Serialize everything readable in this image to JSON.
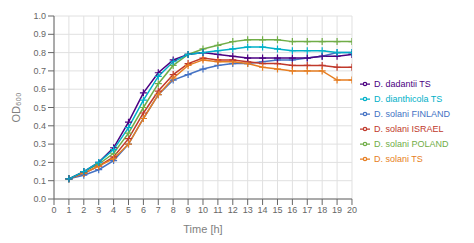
{
  "chart_data": {
    "type": "line",
    "xlabel": "Time [h]",
    "ylabel": "OD₆₀₀",
    "x": [
      1,
      2,
      3,
      4,
      5,
      6,
      7,
      8,
      9,
      10,
      11,
      12,
      13,
      14,
      15,
      16,
      17,
      18,
      19,
      20
    ],
    "xlim": [
      0,
      20
    ],
    "ylim": [
      0.0,
      1.0
    ],
    "xticks": [
      0,
      1,
      2,
      3,
      4,
      5,
      6,
      7,
      8,
      9,
      10,
      11,
      12,
      13,
      14,
      15,
      16,
      17,
      18,
      19,
      20
    ],
    "yticks": [
      {
        "value": 0.0,
        "label": "0.0"
      },
      0.1,
      0.2,
      0.3,
      0.4,
      0.5,
      0.6,
      0.7,
      0.8,
      0.9,
      {
        "value": 1.0,
        "label": "1.0"
      }
    ],
    "grid": true,
    "legend": "right",
    "series": [
      {
        "name": "D. solani FINLAND",
        "color": "#4472C4",
        "marker": "plus",
        "values": [
          0.11,
          0.13,
          0.16,
          0.21,
          0.3,
          0.44,
          0.57,
          0.65,
          0.68,
          0.71,
          0.73,
          0.74,
          0.74,
          0.75,
          0.76,
          0.76,
          0.77,
          0.78,
          0.8,
          0.8
        ]
      },
      {
        "name": "D. solani ISRAEL",
        "color": "#C0392B",
        "marker": "plus",
        "values": [
          0.11,
          0.14,
          0.18,
          0.23,
          0.33,
          0.47,
          0.59,
          0.68,
          0.74,
          0.77,
          0.76,
          0.76,
          0.75,
          0.74,
          0.74,
          0.73,
          0.73,
          0.73,
          0.72,
          0.72
        ]
      },
      {
        "name": "D. solani POLAND",
        "color": "#70AD47",
        "marker": "plus",
        "values": [
          0.11,
          0.15,
          0.19,
          0.25,
          0.36,
          0.5,
          0.63,
          0.73,
          0.79,
          0.82,
          0.84,
          0.86,
          0.87,
          0.87,
          0.87,
          0.86,
          0.86,
          0.86,
          0.86,
          0.86
        ]
      },
      {
        "name": "D. solani TS",
        "color": "#E67E22",
        "marker": "plus",
        "values": [
          0.11,
          0.14,
          0.18,
          0.22,
          0.3,
          0.44,
          0.57,
          0.66,
          0.73,
          0.76,
          0.75,
          0.75,
          0.74,
          0.72,
          0.71,
          0.7,
          0.7,
          0.7,
          0.65,
          0.65
        ]
      },
      {
        "name": "D. dadantii TS",
        "color": "#4B0082",
        "marker": "plus",
        "values": [
          0.11,
          0.15,
          0.2,
          0.28,
          0.42,
          0.58,
          0.69,
          0.76,
          0.79,
          0.8,
          0.79,
          0.78,
          0.77,
          0.77,
          0.77,
          0.77,
          0.77,
          0.78,
          0.78,
          0.79
        ]
      },
      {
        "name": "D. dianthicola TS",
        "color": "#00B0C8",
        "marker": "plus",
        "values": [
          0.11,
          0.15,
          0.2,
          0.27,
          0.39,
          0.54,
          0.67,
          0.75,
          0.79,
          0.8,
          0.81,
          0.82,
          0.83,
          0.83,
          0.82,
          0.81,
          0.81,
          0.81,
          0.8,
          0.8
        ]
      }
    ]
  }
}
